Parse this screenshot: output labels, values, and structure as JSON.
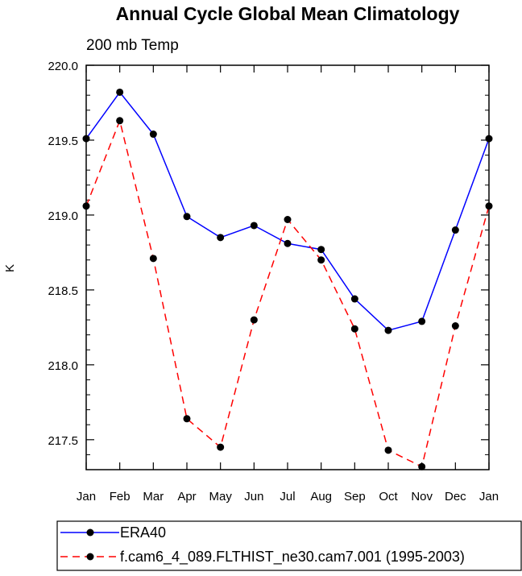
{
  "chart_data": {
    "type": "line",
    "title": "Annual Cycle Global Mean Climatology",
    "subtitle": "200 mb Temp",
    "xlabel": "",
    "ylabel": "K",
    "categories": [
      "Jan",
      "Feb",
      "Mar",
      "Apr",
      "May",
      "Jun",
      "Jul",
      "Aug",
      "Sep",
      "Oct",
      "Nov",
      "Dec",
      "Jan"
    ],
    "ylim": [
      217.3,
      220.0
    ],
    "yticks": [
      "217.5",
      "218.0",
      "218.5",
      "219.0",
      "219.5",
      "220.0"
    ],
    "grid": false,
    "legend_position": "bottom",
    "series": [
      {
        "name": "ERA40",
        "color": "#0000ff",
        "dash": "solid",
        "marker": "filled-circle",
        "values": [
          219.51,
          219.82,
          219.54,
          218.99,
          218.85,
          218.93,
          218.81,
          218.77,
          218.44,
          218.23,
          218.29,
          218.9,
          219.51
        ]
      },
      {
        "name": "f.cam6_4_089.FLTHIST_ne30.cam7.001 (1995-2003)",
        "color": "#ff0000",
        "dash": "dashed",
        "marker": "filled-circle",
        "values": [
          219.06,
          219.63,
          218.71,
          217.64,
          217.45,
          218.3,
          218.97,
          218.7,
          218.24,
          217.43,
          217.32,
          218.26,
          219.06
        ]
      }
    ]
  }
}
